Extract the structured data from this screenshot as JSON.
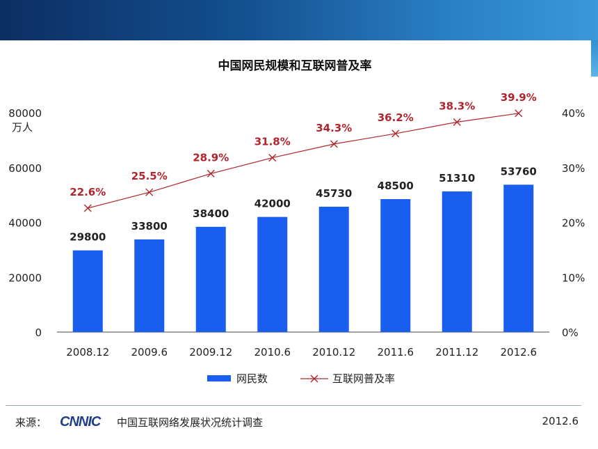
{
  "chart_data": {
    "type": "bar",
    "title": "中国网民规模和互联网普及率",
    "categories": [
      "2008.12",
      "2009.6",
      "2009.12",
      "2010.6",
      "2010.12",
      "2011.6",
      "2011.12",
      "2012.6"
    ],
    "series": [
      {
        "name": "网民数",
        "type": "bar",
        "axis": "left",
        "values": [
          29800,
          33800,
          38400,
          42000,
          45730,
          48500,
          51310,
          53760
        ],
        "labels": [
          "29800",
          "33800",
          "38400",
          "42000",
          "45730",
          "48500",
          "51310",
          "53760"
        ]
      },
      {
        "name": "互联网普及率",
        "type": "line",
        "axis": "right",
        "values": [
          22.6,
          25.5,
          28.9,
          31.8,
          34.3,
          36.2,
          38.3,
          39.9
        ],
        "labels": [
          "22.6%",
          "25.5%",
          "28.9%",
          "31.8%",
          "34.3%",
          "36.2%",
          "38.3%",
          "39.9%"
        ]
      }
    ],
    "y_left": {
      "unit": "万人",
      "ylim": [
        0,
        80000
      ],
      "ticks": [
        "0",
        "20000",
        "40000",
        "60000",
        "80000"
      ]
    },
    "y_right": {
      "ylim": [
        0,
        40
      ],
      "ticks": [
        "0%",
        "10%",
        "20%",
        "30%",
        "40%"
      ]
    },
    "legend": {
      "position": "bottom"
    },
    "grid": false,
    "colors": {
      "bar": "#1a5ef0",
      "line": "#b0252d",
      "label": "#222222"
    }
  },
  "footer": {
    "source_label": "来源：",
    "logo_text": "CNNIC",
    "survey_name": "中国互联网络发展状况统计调查",
    "date": "2012.6"
  }
}
